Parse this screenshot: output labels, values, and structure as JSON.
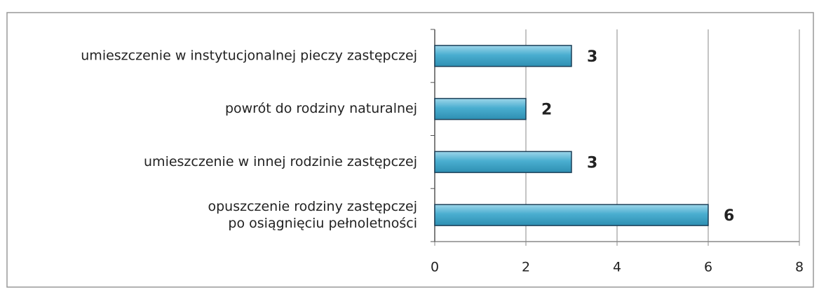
{
  "chart_data": {
    "type": "barh",
    "categories": [
      "umieszczenie w instytucjonalnej pieczy zastępczej",
      "powrót do rodziny naturalnej",
      "umieszczenie w innej rodzinie zastępczej",
      "opuszczenie rodziny zastępczej\npo osiągnięciu pełnoletności"
    ],
    "values": [
      3,
      2,
      3,
      6
    ],
    "color": "#4aaed0",
    "xlim": [
      0,
      8
    ],
    "xticks": [
      0,
      2,
      4,
      6,
      8
    ],
    "grid": true
  }
}
